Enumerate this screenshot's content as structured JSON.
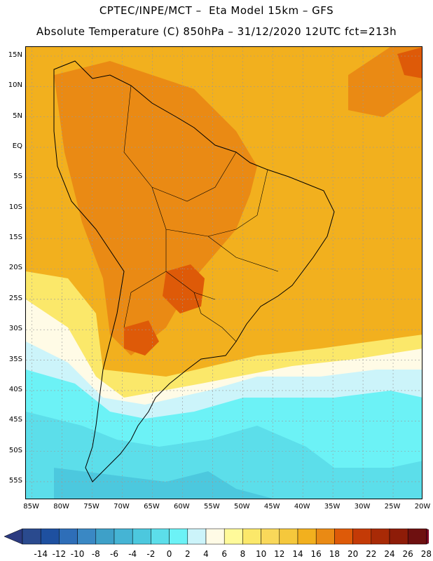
{
  "header": {
    "line1": "CPTEC/INPE/MCT –  Eta Model 15km – GFS",
    "line2": "Absolute Temperature (C) 850hPa – 31/12/2020 12UTC fct=213h"
  },
  "axes": {
    "lat_labels": [
      "15N",
      "10N",
      "5N",
      "EQ",
      "5S",
      "10S",
      "15S",
      "20S",
      "25S",
      "30S",
      "35S",
      "40S",
      "45S",
      "50S",
      "55S"
    ],
    "lat_values": [
      15,
      10,
      5,
      0,
      -5,
      -10,
      -15,
      -20,
      -25,
      -30,
      -35,
      -40,
      -45,
      -50,
      -55
    ],
    "lon_labels": [
      "85W",
      "80W",
      "75W",
      "70W",
      "65W",
      "60W",
      "55W",
      "50W",
      "45W",
      "40W",
      "35W",
      "30W",
      "25W",
      "20W"
    ],
    "lon_values": [
      -85,
      -80,
      -75,
      -70,
      -65,
      -60,
      -55,
      -50,
      -45,
      -40,
      -35,
      -30,
      -25,
      -20
    ],
    "lat_range": [
      -58,
      16.5
    ],
    "lon_range": [
      -86,
      -20
    ],
    "grid": "dotted"
  },
  "colorbar": {
    "labels": [
      "-14",
      "-12",
      "-10",
      "-8",
      "-6",
      "-4",
      "-2",
      "0",
      "2",
      "4",
      "6",
      "8",
      "10",
      "12",
      "14",
      "16",
      "18",
      "20",
      "22",
      "24",
      "26",
      "28"
    ],
    "colors": [
      "#2a4a8e",
      "#1e50a0",
      "#2e6eb8",
      "#3a88c4",
      "#3ea0c8",
      "#45b4d4",
      "#4cc8de",
      "#5cdeea",
      "#6cf2f6",
      "#ccf4fa",
      "#fffbe6",
      "#fffa9a",
      "#fbe86a",
      "#f9d85a",
      "#f5c83c",
      "#f2b01e",
      "#ea8a14",
      "#de5a08",
      "#c43a06",
      "#a82a06",
      "#8e1c08",
      "#6e1010"
    ],
    "left_cap_color": "#2b3a80",
    "right_cap_color": "#780020"
  }
}
